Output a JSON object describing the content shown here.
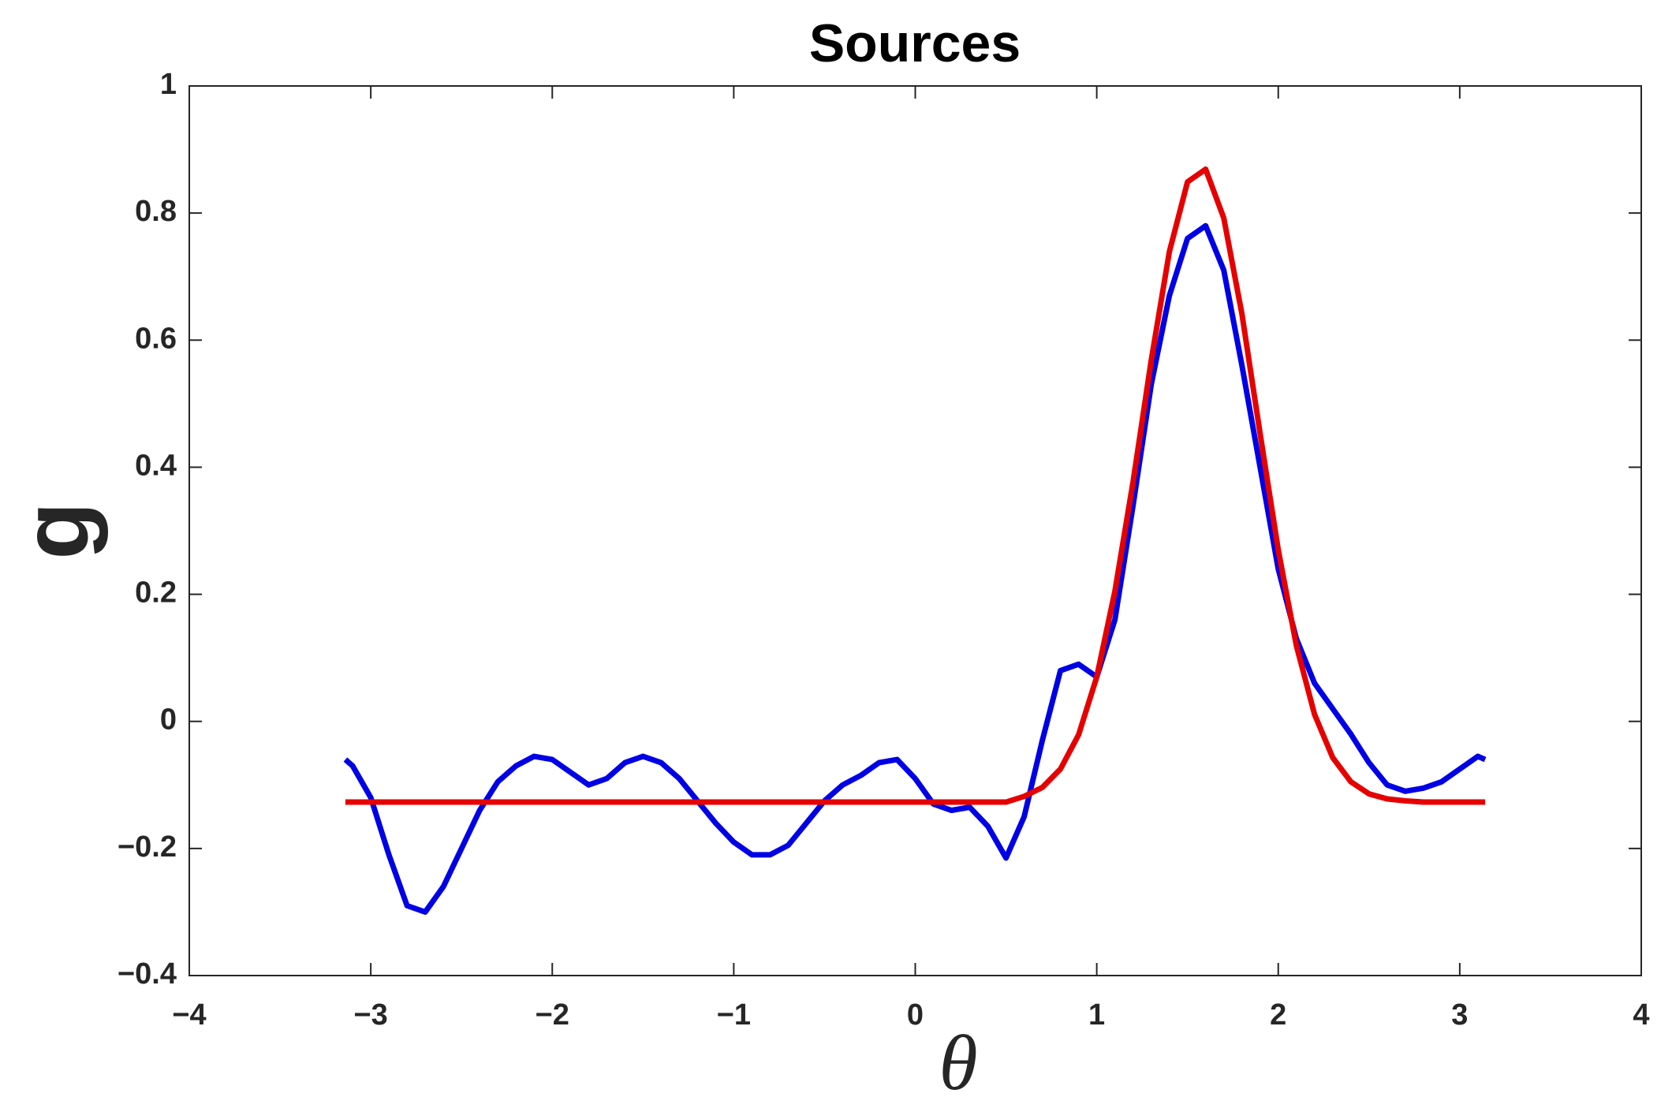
{
  "chart_data": {
    "type": "line",
    "title": "Sources",
    "x_label": "θ",
    "y_label": "g",
    "x": [
      -3.14,
      -3.1,
      -3,
      -2.9,
      -2.8,
      -2.7,
      -2.6,
      -2.5,
      -2.4,
      -2.3,
      -2.2,
      -2.1,
      -2,
      -1.9,
      -1.8,
      -1.7,
      -1.6,
      -1.5,
      -1.4,
      -1.3,
      -1.2,
      -1.1,
      -1,
      -0.9,
      -0.8,
      -0.7,
      -0.6,
      -0.5,
      -0.4,
      -0.3,
      -0.2,
      -0.1,
      0,
      0.1,
      0.2,
      0.3,
      0.4,
      0.5,
      0.6,
      0.7,
      0.8,
      0.9,
      1,
      1.1,
      1.2,
      1.3,
      1.4,
      1.5,
      1.6,
      1.7,
      1.8,
      1.9,
      2,
      2.1,
      2.2,
      2.3,
      2.4,
      2.5,
      2.6,
      2.7,
      2.8,
      2.9,
      3,
      3.1,
      3.14
    ],
    "series": [
      {
        "color": "#0000e6",
        "values": [
          -0.06,
          -0.07,
          -0.12,
          -0.21,
          -0.29,
          -0.3,
          -0.26,
          -0.2,
          -0.14,
          -0.095,
          -0.07,
          -0.055,
          -0.06,
          -0.08,
          -0.1,
          -0.09,
          -0.065,
          -0.055,
          -0.065,
          -0.09,
          -0.125,
          -0.16,
          -0.19,
          -0.21,
          -0.21,
          -0.195,
          -0.16,
          -0.125,
          -0.1,
          -0.085,
          -0.065,
          -0.06,
          -0.09,
          -0.13,
          -0.14,
          -0.135,
          -0.165,
          -0.215,
          -0.15,
          -0.03,
          0.08,
          0.09,
          0.07,
          0.16,
          0.34,
          0.53,
          0.67,
          0.76,
          0.78,
          0.71,
          0.56,
          0.4,
          0.24,
          0.13,
          0.06,
          0.02,
          -0.02,
          -0.065,
          -0.1,
          -0.11,
          -0.105,
          -0.095,
          -0.075,
          -0.055,
          -0.06
        ]
      },
      {
        "color": "#e60000",
        "values": [
          -0.127,
          -0.127,
          -0.127,
          -0.127,
          -0.127,
          -0.127,
          -0.127,
          -0.127,
          -0.127,
          -0.127,
          -0.127,
          -0.127,
          -0.127,
          -0.127,
          -0.127,
          -0.127,
          -0.127,
          -0.127,
          -0.127,
          -0.127,
          -0.127,
          -0.127,
          -0.127,
          -0.127,
          -0.127,
          -0.127,
          -0.127,
          -0.127,
          -0.127,
          -0.127,
          -0.127,
          -0.127,
          -0.127,
          -0.127,
          -0.127,
          -0.127,
          -0.127,
          -0.127,
          -0.118,
          -0.104,
          -0.075,
          -0.021,
          0.07,
          0.205,
          0.377,
          0.568,
          0.739,
          0.849,
          0.869,
          0.792,
          0.641,
          0.453,
          0.27,
          0.119,
          0.011,
          -0.057,
          -0.095,
          -0.114,
          -0.122,
          -0.125,
          -0.127,
          -0.127,
          -0.127,
          -0.127,
          -0.127
        ]
      }
    ],
    "xlim": [
      -4,
      4
    ],
    "xticks": [
      {
        "value": -4,
        "label": "−4"
      },
      {
        "value": -3,
        "label": "−3"
      },
      {
        "value": -2,
        "label": "−2"
      },
      {
        "value": -1,
        "label": "−1"
      },
      0,
      1,
      2,
      3,
      4
    ],
    "ylim": [
      -0.4,
      1
    ],
    "yticks": [
      {
        "value": -0.4,
        "label": "−0.4"
      },
      {
        "value": -0.2,
        "label": "−0.2"
      },
      0,
      0.2,
      0.4,
      0.6,
      0.8,
      1
    ],
    "grid": false
  }
}
